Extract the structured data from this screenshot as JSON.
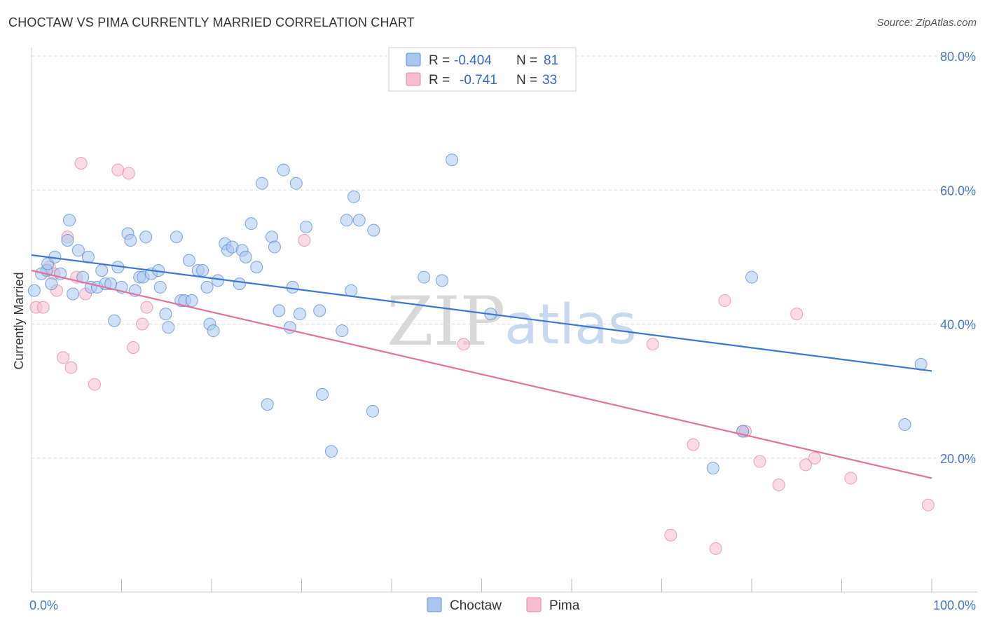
{
  "title": "CHOCTAW VS PIMA CURRENTLY MARRIED CORRELATION CHART",
  "source": "Source: ZipAtlas.com",
  "watermark": {
    "zip": "ZIP",
    "atlas": "atlas"
  },
  "colors": {
    "choctaw_fill": "#a9c6f0",
    "choctaw_stroke": "#5b8fd6",
    "choctaw_line": "#3a77d2",
    "pima_fill": "#f6bcd0",
    "pima_stroke": "#e68aa9",
    "pima_line": "#e0729b",
    "tick_text": "#4477cc",
    "grid": "#dddddd"
  },
  "legend": {
    "rows": [
      {
        "r_label": "R =",
        "r_value": "-0.404",
        "n_label": "N =",
        "n_value": "81"
      },
      {
        "r_label": "R =",
        "r_value": "-0.741",
        "n_label": "N =",
        "n_value": "33"
      }
    ]
  },
  "chart_data": {
    "type": "scatter",
    "xlabel": "",
    "ylabel": "Currently Married",
    "xlim": [
      0,
      100
    ],
    "ylim": [
      0,
      80
    ],
    "x_tick_labels": [
      "0.0%",
      "100.0%"
    ],
    "y_ticks": [
      20,
      40,
      60,
      80
    ],
    "y_tick_labels": [
      "20.0%",
      "40.0%",
      "60.0%",
      "80.0%"
    ],
    "grid": "horizontal dashed",
    "legend_position": "top-center",
    "series": [
      {
        "name": "Choctaw",
        "r": -0.404,
        "n": 81,
        "trend": {
          "x": [
            0,
            100
          ],
          "y": [
            50.3,
            33.0
          ]
        },
        "points": [
          [
            0.3,
            45.0
          ],
          [
            1.1,
            47.5
          ],
          [
            1.7,
            48.0
          ],
          [
            1.8,
            49.0
          ],
          [
            2.2,
            46.0
          ],
          [
            2.6,
            50.0
          ],
          [
            3.2,
            47.5
          ],
          [
            4.0,
            52.5
          ],
          [
            4.2,
            55.5
          ],
          [
            4.6,
            44.5
          ],
          [
            5.2,
            51.0
          ],
          [
            5.7,
            47.0
          ],
          [
            6.3,
            50.0
          ],
          [
            6.6,
            45.5
          ],
          [
            7.3,
            45.5
          ],
          [
            7.8,
            48.0
          ],
          [
            8.2,
            46.0
          ],
          [
            8.8,
            46.0
          ],
          [
            9.2,
            40.5
          ],
          [
            9.6,
            48.5
          ],
          [
            10.0,
            45.5
          ],
          [
            10.7,
            53.5
          ],
          [
            11.0,
            52.5
          ],
          [
            11.5,
            45.0
          ],
          [
            12.0,
            47.0
          ],
          [
            12.7,
            53.0
          ],
          [
            12.4,
            47.0
          ],
          [
            13.3,
            47.5
          ],
          [
            14.1,
            48.0
          ],
          [
            14.3,
            45.5
          ],
          [
            14.9,
            41.5
          ],
          [
            15.2,
            39.5
          ],
          [
            16.1,
            53.0
          ],
          [
            16.6,
            43.5
          ],
          [
            17.0,
            43.5
          ],
          [
            17.5,
            49.5
          ],
          [
            17.8,
            43.5
          ],
          [
            18.5,
            48.0
          ],
          [
            19.0,
            48.0
          ],
          [
            19.5,
            45.5
          ],
          [
            19.8,
            40.0
          ],
          [
            20.2,
            39.0
          ],
          [
            20.7,
            46.5
          ],
          [
            21.5,
            52.0
          ],
          [
            21.8,
            51.0
          ],
          [
            22.3,
            51.5
          ],
          [
            23.1,
            46.0
          ],
          [
            23.4,
            51.0
          ],
          [
            23.8,
            50.0
          ],
          [
            24.4,
            55.0
          ],
          [
            25.0,
            48.5
          ],
          [
            25.6,
            61.0
          ],
          [
            26.2,
            28.0
          ],
          [
            26.7,
            53.0
          ],
          [
            27.0,
            51.5
          ],
          [
            27.5,
            42.0
          ],
          [
            28.0,
            63.0
          ],
          [
            28.7,
            39.5
          ],
          [
            29.0,
            45.5
          ],
          [
            29.4,
            61.0
          ],
          [
            29.8,
            41.5
          ],
          [
            30.5,
            54.5
          ],
          [
            32.0,
            42.0
          ],
          [
            32.3,
            29.5
          ],
          [
            33.3,
            21.0
          ],
          [
            34.5,
            39.0
          ],
          [
            35.0,
            55.5
          ],
          [
            35.5,
            45.0
          ],
          [
            35.8,
            59.0
          ],
          [
            36.4,
            55.5
          ],
          [
            37.9,
            27.0
          ],
          [
            38.0,
            54.0
          ],
          [
            43.6,
            47.0
          ],
          [
            45.6,
            46.5
          ],
          [
            46.7,
            64.5
          ],
          [
            51.0,
            41.5
          ],
          [
            75.7,
            18.5
          ],
          [
            79.0,
            24.0
          ],
          [
            80.0,
            47.0
          ],
          [
            97.0,
            25.0
          ],
          [
            98.8,
            34.0
          ]
        ]
      },
      {
        "name": "Pima",
        "r": -0.741,
        "n": 33,
        "trend": {
          "x": [
            0,
            100
          ],
          "y": [
            48.0,
            17.0
          ]
        },
        "points": [
          [
            0.5,
            42.5
          ],
          [
            1.3,
            42.5
          ],
          [
            2.0,
            48.5
          ],
          [
            2.5,
            47.5
          ],
          [
            2.8,
            45.0
          ],
          [
            3.5,
            35.0
          ],
          [
            4.0,
            53.0
          ],
          [
            4.4,
            33.5
          ],
          [
            5.0,
            47.0
          ],
          [
            5.5,
            64.0
          ],
          [
            6.0,
            44.5
          ],
          [
            7.0,
            31.0
          ],
          [
            9.6,
            63.0
          ],
          [
            10.8,
            62.5
          ],
          [
            11.3,
            36.5
          ],
          [
            12.3,
            40.0
          ],
          [
            12.8,
            42.5
          ],
          [
            30.3,
            52.5
          ],
          [
            48.0,
            37.0
          ],
          [
            69.0,
            37.0
          ],
          [
            71.0,
            8.5
          ],
          [
            73.5,
            22.0
          ],
          [
            76.0,
            6.5
          ],
          [
            77.0,
            43.5
          ],
          [
            79.0,
            24.0
          ],
          [
            79.3,
            24.0
          ],
          [
            80.9,
            19.5
          ],
          [
            83.0,
            16.0
          ],
          [
            85.0,
            41.5
          ],
          [
            86.0,
            19.0
          ],
          [
            87.0,
            20.0
          ],
          [
            91.0,
            17.0
          ],
          [
            99.6,
            13.0
          ]
        ]
      }
    ]
  }
}
